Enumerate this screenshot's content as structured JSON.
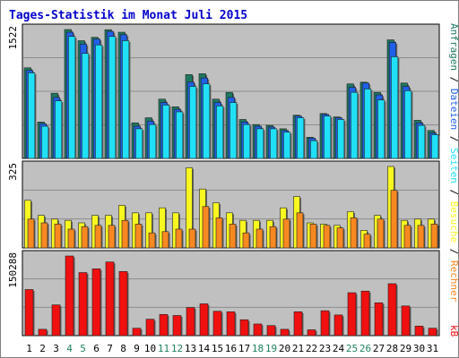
{
  "chart_data": {
    "type": "bar",
    "title": "Tages-Statistik im Monat Juli 2015",
    "categories": [
      "1",
      "2",
      "3",
      "4",
      "5",
      "6",
      "7",
      "8",
      "9",
      "10",
      "11",
      "12",
      "13",
      "14",
      "15",
      "16",
      "17",
      "18",
      "19",
      "20",
      "21",
      "22",
      "23",
      "24",
      "25",
      "26",
      "27",
      "28",
      "29",
      "30",
      "31"
    ],
    "weekend_days": [
      "4",
      "5",
      "11",
      "12",
      "18",
      "19",
      "25",
      "26"
    ],
    "colors": {
      "title": "#0000cc",
      "background": "#ffffff",
      "panel": "#c0c0c0",
      "grid": "#8c8c8c",
      "anfragen": "#1e7860",
      "dateien": "#2060e8",
      "seiten": "#20e0f8",
      "besuche": "#f8f820",
      "rechner": "#f88820",
      "kb": "#f01010",
      "weekend_label": "#208060",
      "weekday_label": "#000000"
    },
    "panels": [
      {
        "ymax_label": "1522",
        "ymax": 1522,
        "series": [
          {
            "name": "Anfragen",
            "values": [
              1070,
              430,
              770,
              1522,
              1390,
              1430,
              1520,
              1490,
              420,
              480,
              700,
              610,
              990,
              1000,
              700,
              780,
              460,
              400,
              390,
              350,
              510,
              250,
              530,
              490,
              880,
              900,
              780,
              1400,
              890,
              450,
              330
            ]
          },
          {
            "name": "Dateien",
            "values": [
              1040,
              410,
              720,
              1490,
              1350,
              1410,
              1500,
              1460,
              380,
              440,
              660,
              580,
              900,
              950,
              660,
              720,
              430,
              380,
              370,
              330,
              500,
              240,
              520,
              480,
              840,
              890,
              750,
              1370,
              850,
              420,
              300
            ]
          },
          {
            "name": "Seiten",
            "values": [
              1010,
              380,
              680,
              1440,
              1240,
              1340,
              1440,
              1390,
              350,
              400,
              630,
              550,
              850,
              880,
              620,
              660,
              400,
              350,
              350,
              310,
              480,
              210,
              500,
              460,
              780,
              820,
              690,
              1200,
              800,
              390,
              280
            ]
          }
        ]
      },
      {
        "ymax_label": "325",
        "ymax": 325,
        "series": [
          {
            "name": "Besuche",
            "values": [
              190,
              130,
              115,
              110,
              100,
              130,
              130,
              170,
              140,
              140,
              160,
              140,
              320,
              235,
              180,
              140,
              110,
              110,
              110,
              160,
              205,
              100,
              95,
              90,
              145,
              70,
              130,
              325,
              110,
              115,
              115
            ]
          },
          {
            "name": "Rechner",
            "values": [
              115,
              100,
              95,
              75,
              85,
              90,
              90,
              110,
              95,
              60,
              65,
              75,
              75,
              165,
              120,
              95,
              60,
              75,
              85,
              115,
              140,
              95,
              90,
              80,
              120,
              55,
              115,
              230,
              90,
              90,
              95
            ]
          }
        ]
      },
      {
        "ymax_label": "150288",
        "ymax": 150288,
        "series": [
          {
            "name": "kB",
            "values": [
              87000,
              12000,
              58000,
              150288,
              119000,
              126000,
              139000,
              121000,
              14000,
              31000,
              40000,
              38000,
              53000,
              60000,
              46000,
              45000,
              30000,
              22000,
              19000,
              12000,
              45000,
              11000,
              47000,
              39000,
              81000,
              84000,
              62000,
              98000,
              56000,
              18000,
              14000
            ]
          }
        ]
      }
    ],
    "right_labels": {
      "top": [
        {
          "text": "Anfragen",
          "color": "#1e7860"
        },
        {
          "text": " / ",
          "color": "#000000"
        },
        {
          "text": "Dateien",
          "color": "#2060e8"
        },
        {
          "text": " / ",
          "color": "#000000"
        },
        {
          "text": "Seiten",
          "color": "#20e0f8"
        },
        {
          "text": " / ",
          "color": "#000000"
        },
        {
          "text": "Besuche",
          "color": "#f8f820"
        },
        {
          "text": " / ",
          "color": "#000000"
        },
        {
          "text": "Rechner",
          "color": "#f88820"
        }
      ],
      "bottom": [
        {
          "text": "kB",
          "color": "#f01010"
        }
      ]
    }
  }
}
